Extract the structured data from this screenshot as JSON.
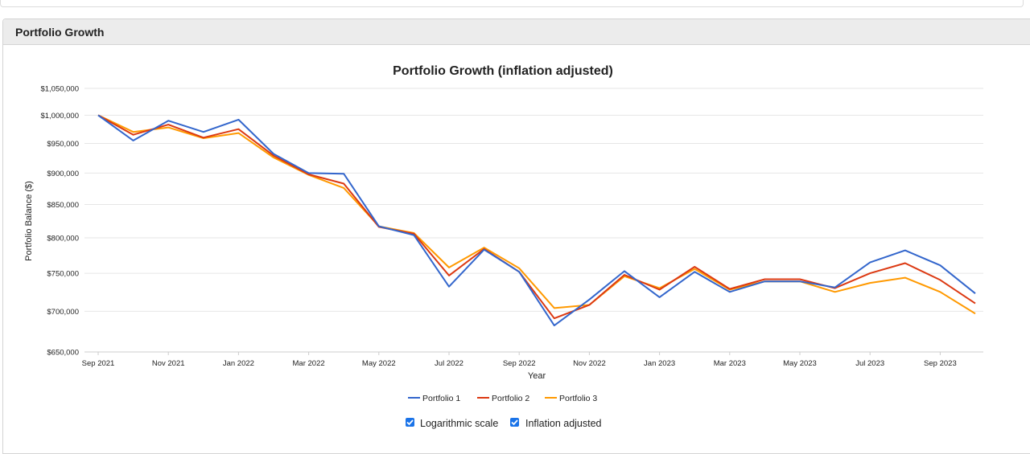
{
  "panel": {
    "title": "Portfolio Growth"
  },
  "controls": {
    "log_scale_label": "Logarithmic scale",
    "log_scale_checked": true,
    "inflation_label": "Inflation adjusted",
    "inflation_checked": true
  },
  "colors": {
    "accent": "#1a73e8",
    "grid": "#e6e6e6",
    "axis": "#cccccc"
  },
  "chart_data": {
    "type": "line",
    "title": "Portfolio Growth (inflation adjusted)",
    "xlabel": "Year",
    "ylabel": "Portfolio Balance ($)",
    "yscale": "log",
    "ylim": [
      650000,
      1050000
    ],
    "yticks": [
      650000,
      700000,
      750000,
      800000,
      850000,
      900000,
      950000,
      1000000,
      1050000
    ],
    "ytick_labels": [
      "$650,000",
      "$700,000",
      "$750,000",
      "$800,000",
      "$850,000",
      "$900,000",
      "$950,000",
      "$1,000,000",
      "$1,050,000"
    ],
    "x": [
      "Sep 2021",
      "Oct 2021",
      "Nov 2021",
      "Dec 2021",
      "Jan 2022",
      "Feb 2022",
      "Mar 2022",
      "Apr 2022",
      "May 2022",
      "Jun 2022",
      "Jul 2022",
      "Aug 2022",
      "Sep 2022",
      "Oct 2022",
      "Nov 2022",
      "Dec 2022",
      "Jan 2023",
      "Feb 2023",
      "Mar 2023",
      "Apr 2023",
      "May 2023",
      "Jun 2023",
      "Jul 2023",
      "Aug 2023",
      "Sep 2023",
      "Oct 2023"
    ],
    "xtick_labels": [
      "Sep 2021",
      "Nov 2021",
      "Jan 2022",
      "Mar 2022",
      "May 2022",
      "Jul 2022",
      "Sep 2022",
      "Nov 2022",
      "Jan 2023",
      "Mar 2023",
      "May 2023",
      "Jul 2023",
      "Sep 2023"
    ],
    "grid": true,
    "legend_position": "bottom",
    "series": [
      {
        "name": "Portfolio 1",
        "color": "#3366cc",
        "values": [
          1000000,
          955000,
          990000,
          970000,
          992000,
          932000,
          900000,
          899000,
          817000,
          804000,
          732000,
          783000,
          752000,
          682000,
          715000,
          753000,
          718000,
          752000,
          725000,
          739000,
          739000,
          731000,
          765000,
          782000,
          761000,
          723000
        ]
      },
      {
        "name": "Portfolio 2",
        "color": "#dc3912",
        "values": [
          1000000,
          965000,
          983000,
          960000,
          975000,
          929000,
          898000,
          883000,
          816000,
          806000,
          747000,
          784000,
          752000,
          691000,
          708000,
          748000,
          728000,
          759000,
          729000,
          742000,
          742000,
          730000,
          750000,
          764000,
          741000,
          710000
        ]
      },
      {
        "name": "Portfolio 3",
        "color": "#ff9900",
        "values": [
          1000000,
          970000,
          978000,
          959000,
          968000,
          926000,
          897000,
          876000,
          817000,
          807000,
          758000,
          786000,
          757000,
          704000,
          708000,
          746000,
          730000,
          756000,
          728000,
          739000,
          739000,
          725000,
          737000,
          744000,
          725000,
          697000
        ]
      }
    ]
  }
}
